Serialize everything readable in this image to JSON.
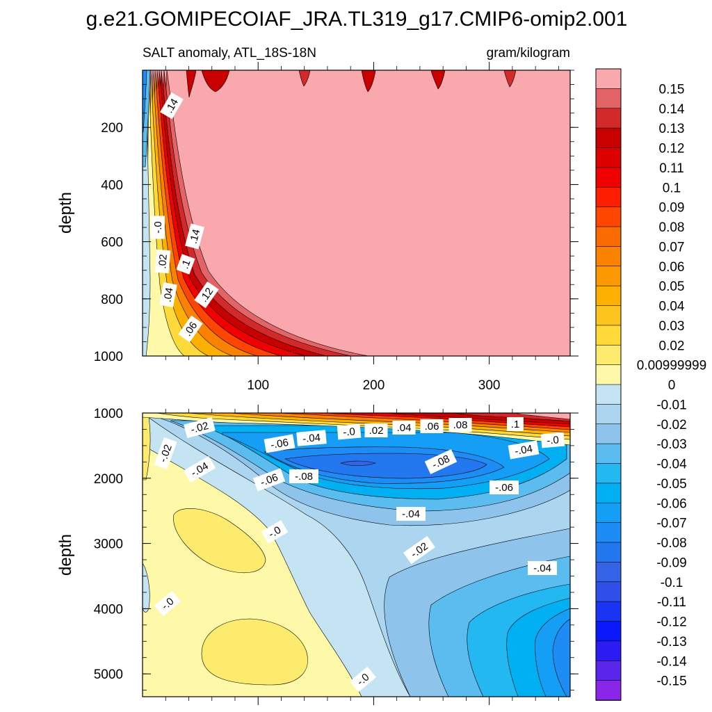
{
  "chart_data": {
    "type": "contour",
    "title": "g.e21.GOMIPECOIAF_JRA.TL319_g17.CMIP6-omip2.001",
    "subtitle_left": "SALT anomaly, ATL_18S-18N",
    "subtitle_right": "gram/kilogram",
    "ylabel": "depth",
    "panels": [
      {
        "name": "upper",
        "xlim": [
          0,
          370
        ],
        "ylim": [
          1000,
          0
        ],
        "xticks": [
          "100",
          "200",
          "300"
        ],
        "yticks": [
          "200",
          "400",
          "600",
          "800",
          "1000"
        ],
        "ytick_values": [
          200,
          400,
          600,
          800,
          1000
        ],
        "contour_labels": [
          ".14",
          ".14",
          ".1",
          ".12",
          ".06",
          ".04",
          ".02",
          "-.0"
        ]
      },
      {
        "name": "lower",
        "xlim": [
          0,
          370
        ],
        "ylim": [
          5350,
          1000
        ],
        "yticks": [
          "1000",
          "2000",
          "3000",
          "4000",
          "5000"
        ],
        "ytick_values": [
          1000,
          2000,
          3000,
          4000,
          5000
        ],
        "contour_labels": [
          "-.02",
          "-.02",
          "-.04",
          "-.06",
          "-.06",
          "-.04",
          "-.08",
          "-.0",
          ".02",
          ".04",
          ".06",
          ".08",
          ".1",
          "-.0",
          "-.04",
          "-.08",
          "-.06",
          "-.04",
          "-.0",
          "-.02",
          "-.04",
          "-.0",
          "-.0"
        ]
      }
    ],
    "colorbar": {
      "labels": [
        "0.15",
        "0.14",
        "0.13",
        "0.12",
        "0.11",
        "0.1",
        "0.09",
        "0.08",
        "0.07",
        "0.06",
        "0.05",
        "0.04",
        "0.03",
        "0.02",
        "0.00999999",
        "0",
        "-0.01",
        "-0.02",
        "-0.03",
        "-0.04",
        "-0.05",
        "-0.06",
        "-0.07",
        "-0.08",
        "-0.09",
        "-0.1",
        "-0.11",
        "-0.12",
        "-0.13",
        "-0.14",
        "-0.15"
      ],
      "colors": [
        "#f9a8ad",
        "#e26466",
        "#d22a2a",
        "#c80000",
        "#dc0000",
        "#f00000",
        "#ff1e00",
        "#ff4600",
        "#f96a00",
        "#fb8200",
        "#fc9800",
        "#fdb000",
        "#fcc41c",
        "#fdd939",
        "#fdeb6e",
        "#fef8a9",
        "#c4e4f4",
        "#acd6ef",
        "#8ec4ec",
        "#5bbcf0",
        "#24b8f3",
        "#00b0f2",
        "#149ef5",
        "#1e8cf5",
        "#2378ef",
        "#3563e5",
        "#2f4fe8",
        "#1b34f4",
        "#0a18fa",
        "#2c1bf2",
        "#5b26ec",
        "#8926ea"
      ]
    }
  }
}
